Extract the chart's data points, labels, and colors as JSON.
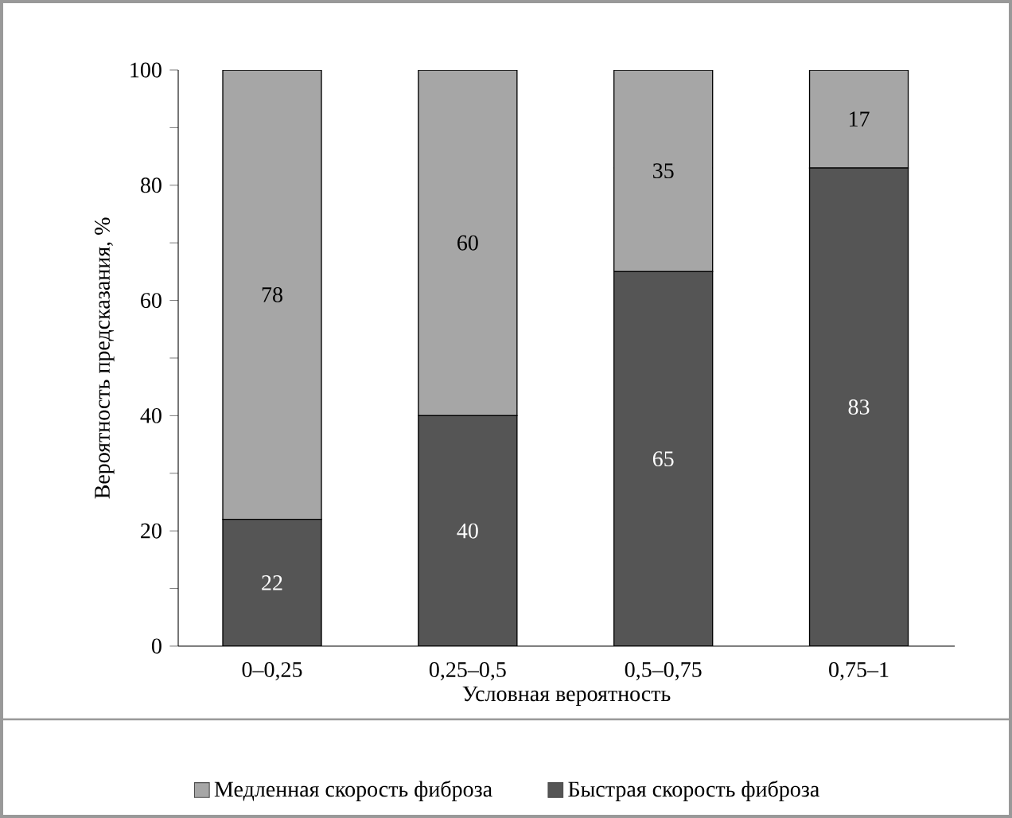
{
  "chart_data": {
    "type": "bar",
    "stacked": true,
    "xlabel": "Условная вероятность",
    "ylabel": "Вероятность предсказания, %",
    "categories": [
      "0–0,25",
      "0,25–0,5",
      "0,5–0,75",
      "0,75–1"
    ],
    "series": [
      {
        "name": "Быстрая скорость фиброза",
        "color": "#555555",
        "values": [
          22,
          40,
          65,
          83
        ]
      },
      {
        "name": "Медленная скорость фиброза",
        "color": "#a6a6a6",
        "values": [
          78,
          60,
          35,
          17
        ]
      }
    ],
    "ylim": [
      0,
      100
    ],
    "yticks": [
      0,
      {
        "value": 10,
        "label": null
      },
      20,
      {
        "value": 30,
        "label": null
      },
      40,
      {
        "value": 50,
        "label": null
      },
      60,
      {
        "value": 70,
        "label": null
      },
      80,
      {
        "value": 90,
        "label": null
      },
      100
    ],
    "data_labels": true,
    "legend": "bottom"
  }
}
